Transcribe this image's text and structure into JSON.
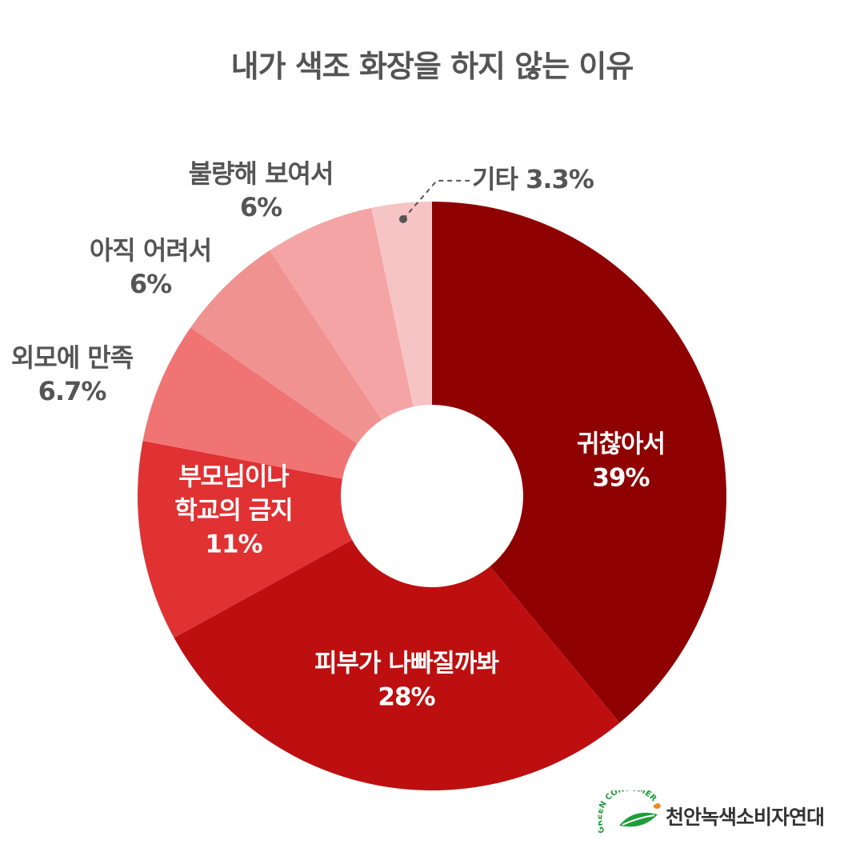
{
  "chart_data": {
    "type": "pie",
    "donut": true,
    "title": "내가 색조 화장을 하지 않는 이유",
    "slices": [
      {
        "label": "귀찮아서",
        "value": 39,
        "display": "39%",
        "color": "#8f0000",
        "label_color": "#ffffff"
      },
      {
        "label": "피부가 나빠질까봐",
        "value": 28,
        "display": "28%",
        "color": "#bd0f10",
        "label_color": "#ffffff"
      },
      {
        "label": "부모님이나 학교의 금지",
        "value": 11,
        "display": "11%",
        "color": "#e03133",
        "label_color": "#ffffff"
      },
      {
        "label": "외모에 만족",
        "value": 6.7,
        "display": "6.7%",
        "color": "#f07474",
        "label_color": "#555555"
      },
      {
        "label": "아직 어려서",
        "value": 6,
        "display": "6%",
        "color": "#f09290",
        "label_color": "#555555"
      },
      {
        "label": "불량해 보여서",
        "value": 6,
        "display": "6%",
        "color": "#f4a4a4",
        "label_color": "#555555"
      },
      {
        "label": "기타",
        "value": 3.3,
        "display": "3.3%",
        "color": "#f6c4c4",
        "label_color": "#555555"
      }
    ]
  },
  "logo": {
    "emblem_text": "GREEN CONSUMER",
    "org_name": "천안녹색소비자연대",
    "colors": {
      "green": "#1f9d3a",
      "orange": "#f08a1c"
    }
  }
}
